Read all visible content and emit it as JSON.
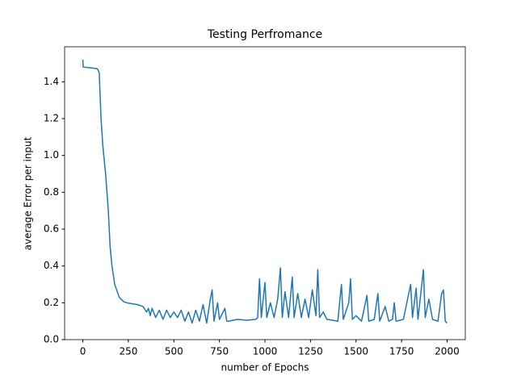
{
  "chart_data": {
    "type": "line",
    "title": "Testing Perfromance",
    "x_label": "number of Epochs",
    "y_label": "average Error per input",
    "color": "#1f77b4",
    "xlim": [
      -100,
      2100
    ],
    "ylim": [
      0,
      1.59
    ],
    "xticks": [
      0,
      250,
      500,
      750,
      1000,
      1250,
      1500,
      1750,
      2000
    ],
    "yticks": [
      {
        "value": 0,
        "label": "0.0"
      },
      0.2,
      0.4,
      0.6,
      0.8,
      {
        "value": 1,
        "label": "1.0"
      },
      1.2,
      1.4
    ],
    "x": [
      0,
      2,
      50,
      80,
      90,
      100,
      110,
      125,
      140,
      150,
      160,
      175,
      200,
      225,
      250,
      300,
      330,
      350,
      360,
      370,
      380,
      400,
      420,
      440,
      460,
      480,
      500,
      520,
      540,
      560,
      580,
      600,
      620,
      640,
      660,
      680,
      700,
      710,
      720,
      740,
      750,
      780,
      790,
      800,
      850,
      900,
      950,
      960,
      970,
      980,
      1000,
      1010,
      1030,
      1050,
      1070,
      1085,
      1095,
      1110,
      1130,
      1150,
      1160,
      1180,
      1200,
      1220,
      1240,
      1260,
      1280,
      1290,
      1300,
      1320,
      1340,
      1400,
      1420,
      1430,
      1460,
      1470,
      1480,
      1500,
      1530,
      1560,
      1570,
      1600,
      1620,
      1630,
      1660,
      1680,
      1700,
      1710,
      1720,
      1760,
      1800,
      1810,
      1830,
      1840,
      1860,
      1870,
      1880,
      1900,
      1920,
      1950,
      1970,
      1980,
      1990,
      2000
    ],
    "values": [
      1.52,
      1.48,
      1.475,
      1.47,
      1.45,
      1.2,
      1.05,
      0.9,
      0.7,
      0.5,
      0.4,
      0.3,
      0.23,
      0.205,
      0.198,
      0.19,
      0.18,
      0.15,
      0.17,
      0.13,
      0.17,
      0.12,
      0.16,
      0.11,
      0.16,
      0.12,
      0.15,
      0.12,
      0.16,
      0.1,
      0.15,
      0.09,
      0.16,
      0.1,
      0.19,
      0.09,
      0.22,
      0.27,
      0.1,
      0.2,
      0.11,
      0.17,
      0.1,
      0.1,
      0.11,
      0.105,
      0.11,
      0.12,
      0.33,
      0.12,
      0.31,
      0.12,
      0.2,
      0.12,
      0.22,
      0.39,
      0.12,
      0.26,
      0.12,
      0.34,
      0.12,
      0.25,
      0.12,
      0.22,
      0.12,
      0.27,
      0.13,
      0.38,
      0.12,
      0.15,
      0.11,
      0.1,
      0.3,
      0.11,
      0.2,
      0.33,
      0.11,
      0.13,
      0.1,
      0.24,
      0.1,
      0.11,
      0.25,
      0.1,
      0.18,
      0.1,
      0.11,
      0.2,
      0.1,
      0.11,
      0.3,
      0.12,
      0.28,
      0.11,
      0.29,
      0.38,
      0.12,
      0.22,
      0.11,
      0.1,
      0.25,
      0.27,
      0.1,
      0.09
    ]
  }
}
